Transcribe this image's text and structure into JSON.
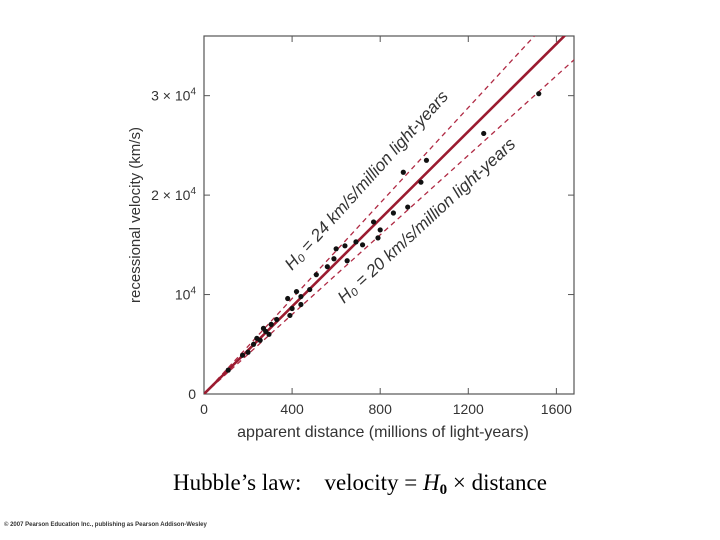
{
  "chart_data": {
    "type": "scatter",
    "xlabel": "apparent distance (millions of light-years)",
    "ylabel": "recessional velocity (km/s)",
    "xlim": [
      0,
      1680
    ],
    "ylim": [
      0,
      36000
    ],
    "x_ticks": [
      0,
      400,
      800,
      1200,
      1600
    ],
    "x_tick_labels": [
      "0",
      "400",
      "800",
      "1200",
      "1600"
    ],
    "y_ticks": [
      0,
      10000,
      20000,
      30000
    ],
    "y_tick_base": "10",
    "y_tick_labels": [
      {
        "mantissa": "",
        "exp": "",
        "plain": "0"
      },
      {
        "mantissa": "",
        "exp": "4",
        "plain": ""
      },
      {
        "mantissa": "2 ×",
        "exp": "4",
        "plain": ""
      },
      {
        "mantissa": "3 ×",
        "exp": "4",
        "plain": ""
      }
    ],
    "fit_line": {
      "slope": 22,
      "color": "#9b1b30"
    },
    "bound_lines": [
      {
        "slope": 24,
        "label": "H₀ = 24 km/s/million light-years",
        "position": "upper"
      },
      {
        "slope": 20,
        "label": "H₀ = 20 km/s/million light-years",
        "position": "lower"
      }
    ],
    "points": {
      "x": [
        110,
        175,
        200,
        225,
        240,
        255,
        270,
        280,
        295,
        305,
        330,
        380,
        390,
        400,
        420,
        440,
        440,
        480,
        510,
        560,
        590,
        600,
        640,
        650,
        690,
        720,
        770,
        790,
        800,
        860,
        905,
        925,
        985,
        1010,
        1270,
        1520
      ],
      "y": [
        2400,
        3900,
        4200,
        5000,
        5600,
        5400,
        6600,
        6300,
        6000,
        7000,
        7500,
        9600,
        7900,
        8600,
        10300,
        9000,
        9800,
        10500,
        12000,
        12800,
        13600,
        14600,
        14900,
        13400,
        15300,
        15000,
        17300,
        15700,
        16500,
        18200,
        22300,
        18800,
        21300,
        23500,
        26200,
        30200
      ]
    }
  },
  "caption": {
    "prefix": "Hubble’s law:",
    "formula_start": "velocity =",
    "variable": "H",
    "subscript": "0",
    "formula_end": "× distance"
  },
  "copyright": "© 2007 Pearson Education Inc., publishing as Pearson Addison-Wesley",
  "colors": {
    "fit": "#9b1b30",
    "bound": "#b02a44",
    "point": "#111111",
    "axis": "#555555"
  }
}
